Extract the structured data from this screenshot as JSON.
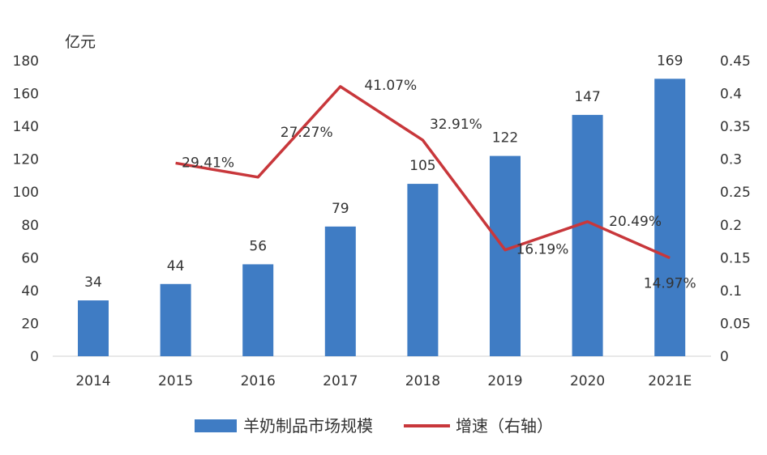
{
  "chart_data": {
    "type": "bar+line",
    "categories": [
      "2014",
      "2015",
      "2016",
      "2017",
      "2018",
      "2019",
      "2020",
      "2021E"
    ],
    "left_axis": {
      "unit_label": "亿元",
      "ylim": [
        0,
        180
      ],
      "ticks": [
        "0",
        "20",
        "40",
        "60",
        "80",
        "100",
        "120",
        "140",
        "160",
        "180"
      ]
    },
    "right_axis": {
      "ylim": [
        0,
        0.45
      ],
      "ticks": [
        "0",
        "0.05",
        "0.1",
        "0.15",
        "0.2",
        "0.25",
        "0.3",
        "0.35",
        "0.4",
        "0.45"
      ]
    },
    "series": [
      {
        "name": "羊奶制品市场规模",
        "kind": "bar",
        "axis": "left",
        "color": "#3f7cc4",
        "values": [
          34,
          44,
          56,
          79,
          105,
          122,
          147,
          169
        ],
        "labels": [
          "34",
          "44",
          "56",
          "79",
          "105",
          "122",
          "147",
          "169"
        ]
      },
      {
        "name": "增速（右轴）",
        "kind": "line",
        "axis": "right",
        "color": "#c8373b",
        "values": [
          null,
          0.2941,
          0.2727,
          0.4107,
          0.3291,
          0.1619,
          0.2049,
          0.1497
        ],
        "labels": [
          "",
          "29.41%",
          "27.27%",
          "41.07%",
          "32.91%",
          "16.19%",
          "20.49%",
          "14.97%"
        ]
      }
    ],
    "grid": false,
    "legend": "bottom"
  }
}
